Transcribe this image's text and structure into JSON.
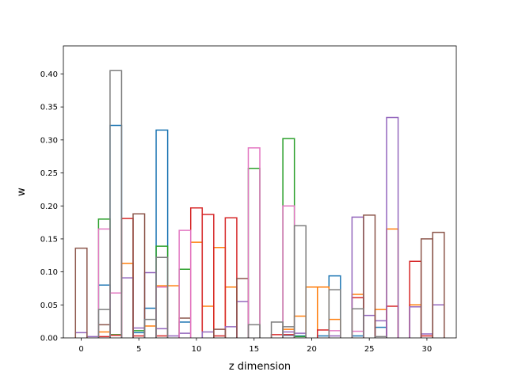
{
  "chart_data": {
    "type": "step",
    "title": "",
    "xlabel": "z dimension",
    "ylabel": "w",
    "xlim": [
      -1.55,
      32.55
    ],
    "ylim": [
      0,
      0.4425
    ],
    "xticks": [
      0,
      5,
      10,
      15,
      20,
      25,
      30
    ],
    "xtick_labels": [
      "0",
      "5",
      "10",
      "15",
      "20",
      "25",
      "30"
    ],
    "yticks": [
      0.0,
      0.05,
      0.1,
      0.15,
      0.2,
      0.25,
      0.3,
      0.35,
      0.4
    ],
    "ytick_labels": [
      "0.00",
      "0.05",
      "0.10",
      "0.15",
      "0.20",
      "0.25",
      "0.30",
      "0.35",
      "0.40"
    ],
    "grid": false,
    "legend": null,
    "series": [
      {
        "color": "#1f77b4",
        "points": [
          [
            2,
            0.08
          ],
          [
            3,
            0.322
          ],
          [
            5,
            0.008
          ],
          [
            6,
            0.045
          ],
          [
            7,
            0.315
          ],
          [
            9,
            0.024
          ],
          [
            18,
            0.004
          ],
          [
            19,
            0.003
          ],
          [
            21,
            0.003
          ],
          [
            22,
            0.094
          ],
          [
            24,
            0.003
          ],
          [
            26,
            0.016
          ]
        ]
      },
      {
        "color": "#ff7f0e",
        "points": [
          [
            2,
            0.009
          ],
          [
            4,
            0.113
          ],
          [
            6,
            0.018
          ],
          [
            7,
            0.079
          ],
          [
            8,
            0.079
          ],
          [
            10,
            0.145
          ],
          [
            11,
            0.048
          ],
          [
            12,
            0.137
          ],
          [
            13,
            0.077
          ],
          [
            18,
            0.013
          ],
          [
            19,
            0.033
          ],
          [
            20,
            0.077
          ],
          [
            21,
            0.077
          ],
          [
            22,
            0.028
          ],
          [
            24,
            0.066
          ],
          [
            26,
            0.043
          ],
          [
            27,
            0.165
          ],
          [
            29,
            0.05
          ]
        ]
      },
      {
        "color": "#2ca02c",
        "points": [
          [
            2,
            0.18
          ],
          [
            3,
            0.005
          ],
          [
            5,
            0.011
          ],
          [
            7,
            0.139
          ],
          [
            9,
            0.104
          ],
          [
            15,
            0.257
          ],
          [
            18,
            0.302
          ],
          [
            19,
            0.002
          ]
        ]
      },
      {
        "color": "#d62728",
        "points": [
          [
            2,
            0.002
          ],
          [
            3,
            0.004
          ],
          [
            4,
            0.181
          ],
          [
            5,
            0.003
          ],
          [
            7,
            0.003
          ],
          [
            10,
            0.197
          ],
          [
            11,
            0.187
          ],
          [
            12,
            0.003
          ],
          [
            13,
            0.182
          ],
          [
            17,
            0.005
          ],
          [
            18,
            0.005
          ],
          [
            21,
            0.012
          ],
          [
            24,
            0.061
          ],
          [
            27,
            0.048
          ],
          [
            29,
            0.116
          ],
          [
            30,
            0.003
          ]
        ]
      },
      {
        "color": "#9467bd",
        "points": [
          [
            0,
            0.008
          ],
          [
            1,
            0.002
          ],
          [
            4,
            0.091
          ],
          [
            5,
            0.015
          ],
          [
            6,
            0.099
          ],
          [
            7,
            0.014
          ],
          [
            8,
            0.003
          ],
          [
            9,
            0.007
          ],
          [
            11,
            0.009
          ],
          [
            13,
            0.017
          ],
          [
            14,
            0.055
          ],
          [
            18,
            0.009
          ],
          [
            19,
            0.007
          ],
          [
            22,
            0.003
          ],
          [
            24,
            0.183
          ],
          [
            25,
            0.034
          ],
          [
            26,
            0.026
          ],
          [
            27,
            0.334
          ],
          [
            29,
            0.047
          ],
          [
            30,
            0.006
          ],
          [
            31,
            0.05
          ]
        ]
      },
      {
        "color": "#8c564b",
        "points": [
          [
            0,
            0.136
          ],
          [
            2,
            0.02
          ],
          [
            5,
            0.188
          ],
          [
            9,
            0.03
          ],
          [
            12,
            0.013
          ],
          [
            14,
            0.09
          ],
          [
            25,
            0.186
          ],
          [
            30,
            0.15
          ],
          [
            31,
            0.16
          ]
        ]
      },
      {
        "color": "#e377c2",
        "points": [
          [
            2,
            0.165
          ],
          [
            3,
            0.068
          ],
          [
            7,
            0.077
          ],
          [
            9,
            0.163
          ],
          [
            15,
            0.288
          ],
          [
            18,
            0.2
          ],
          [
            22,
            0.011
          ],
          [
            24,
            0.01
          ]
        ]
      },
      {
        "color": "#7f7f7f",
        "points": [
          [
            2,
            0.043
          ],
          [
            3,
            0.405
          ],
          [
            6,
            0.028
          ],
          [
            7,
            0.122
          ],
          [
            15,
            0.02
          ],
          [
            17,
            0.024
          ],
          [
            18,
            0.017
          ],
          [
            19,
            0.17
          ],
          [
            22,
            0.073
          ],
          [
            24,
            0.044
          ],
          [
            26,
            0.002
          ]
        ]
      }
    ]
  }
}
